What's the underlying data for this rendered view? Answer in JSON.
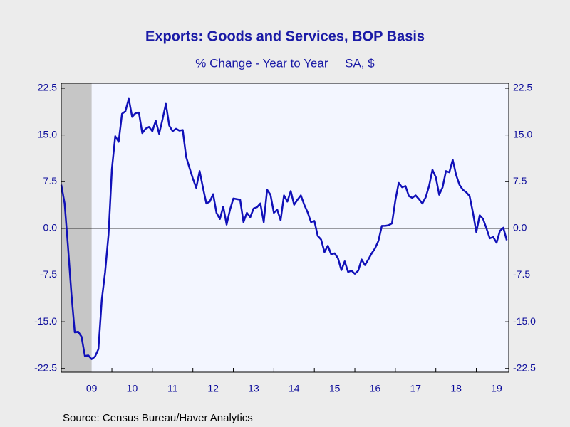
{
  "chart_data": {
    "type": "line",
    "title": "Exports: Goods and Services, BOP Basis",
    "subtitle": "% Change - Year to Year     SA, $",
    "source": "Source:  Census Bureau/Haver Analytics",
    "xlim": [
      2008.75,
      2019.8
    ],
    "ylim": [
      -23.1,
      23.3
    ],
    "yticks": [
      22.5,
      {
        "value": 15.0,
        "label": "15.0"
      },
      7.5,
      {
        "value": 0.0,
        "label": "0.0"
      },
      -7.5,
      {
        "value": -15.0,
        "label": "-15.0"
      },
      -22.5
    ],
    "xticks": [
      {
        "value": 2009.5,
        "label": "09"
      },
      {
        "value": 2010.5,
        "label": "10"
      },
      {
        "value": 2011.5,
        "label": "11"
      },
      {
        "value": 2012.5,
        "label": "12"
      },
      {
        "value": 2013.5,
        "label": "13"
      },
      {
        "value": 2014.5,
        "label": "14"
      },
      {
        "value": 2015.5,
        "label": "15"
      },
      {
        "value": 2016.5,
        "label": "16"
      },
      {
        "value": 2017.5,
        "label": "17"
      },
      {
        "value": 2018.5,
        "label": "18"
      },
      {
        "value": 2019.5,
        "label": "19"
      }
    ],
    "recession": [
      2008.75,
      2009.5
    ],
    "x": [
      2008.75,
      2008.833,
      2008.917,
      2009,
      2009.083,
      2009.167,
      2009.25,
      2009.333,
      2009.417,
      2009.5,
      2009.583,
      2009.667,
      2009.75,
      2009.833,
      2009.917,
      2010,
      2010.083,
      2010.167,
      2010.25,
      2010.333,
      2010.417,
      2010.5,
      2010.583,
      2010.667,
      2010.75,
      2010.833,
      2010.917,
      2011,
      2011.083,
      2011.167,
      2011.25,
      2011.333,
      2011.417,
      2011.5,
      2011.583,
      2011.667,
      2011.75,
      2011.833,
      2011.917,
      2012,
      2012.083,
      2012.167,
      2012.25,
      2012.333,
      2012.417,
      2012.5,
      2012.583,
      2012.667,
      2012.75,
      2012.833,
      2012.917,
      2013,
      2013.083,
      2013.167,
      2013.25,
      2013.333,
      2013.417,
      2013.5,
      2013.583,
      2013.667,
      2013.75,
      2013.833,
      2013.917,
      2014,
      2014.083,
      2014.167,
      2014.25,
      2014.333,
      2014.417,
      2014.5,
      2014.583,
      2014.667,
      2014.75,
      2014.833,
      2014.917,
      2015,
      2015.083,
      2015.167,
      2015.25,
      2015.333,
      2015.417,
      2015.5,
      2015.583,
      2015.667,
      2015.75,
      2015.833,
      2015.917,
      2016,
      2016.083,
      2016.167,
      2016.25,
      2016.333,
      2016.417,
      2016.5,
      2016.583,
      2016.667,
      2016.75,
      2016.833,
      2016.917,
      2017,
      2017.083,
      2017.167,
      2017.25,
      2017.333,
      2017.417,
      2017.5,
      2017.583,
      2017.667,
      2017.75,
      2017.833,
      2017.917,
      2018,
      2018.083,
      2018.167,
      2018.25,
      2018.333,
      2018.417,
      2018.5,
      2018.583,
      2018.667,
      2018.75,
      2018.833,
      2018.917,
      2019,
      2019.083,
      2019.167,
      2019.25,
      2019.333,
      2019.417,
      2019.5,
      2019.583,
      2019.667,
      2019.75
    ],
    "series": [
      {
        "name": "Exports",
        "color": "#1010b8",
        "values": [
          7.0,
          4.0,
          -3.0,
          -10.5,
          -16.7,
          -16.6,
          -17.4,
          -20.5,
          -20.4,
          -21.0,
          -20.6,
          -19.4,
          -11.5,
          -7.0,
          -1.0,
          9.5,
          14.8,
          13.9,
          18.4,
          18.8,
          20.8,
          17.9,
          18.5,
          18.6,
          15.3,
          16.0,
          16.3,
          15.6,
          17.3,
          15.2,
          17.5,
          20.0,
          16.5,
          15.6,
          16.0,
          15.7,
          15.8,
          11.5,
          9.7,
          8.0,
          6.5,
          9.2,
          6.5,
          4.0,
          4.3,
          5.5,
          2.5,
          1.5,
          3.5,
          0.6,
          3.0,
          4.8,
          4.7,
          4.6,
          1.0,
          2.5,
          1.8,
          3.2,
          3.4,
          4.0,
          1.0,
          6.2,
          5.4,
          2.5,
          3.0,
          1.3,
          5.3,
          4.3,
          6.0,
          3.8,
          4.6,
          5.3,
          3.8,
          2.6,
          1.0,
          1.2,
          -1.2,
          -1.8,
          -3.8,
          -2.8,
          -4.2,
          -4.0,
          -4.8,
          -6.7,
          -5.3,
          -7.0,
          -6.8,
          -7.3,
          -6.8,
          -5.0,
          -5.9,
          -5.0,
          -4.0,
          -3.2,
          -2.0,
          0.4,
          0.4,
          0.5,
          0.8,
          4.5,
          7.3,
          6.6,
          6.8,
          5.2,
          4.9,
          5.3,
          4.7,
          4.0,
          5.0,
          6.8,
          9.4,
          8.2,
          5.4,
          6.6,
          9.2,
          9.0,
          11.0,
          8.6,
          7.0,
          6.2,
          5.8,
          5.2,
          2.5,
          -0.6,
          2.1,
          1.5,
          0.0,
          -1.6,
          -1.4,
          -2.3,
          -0.4,
          0.1,
          -1.9
        ]
      }
    ]
  }
}
